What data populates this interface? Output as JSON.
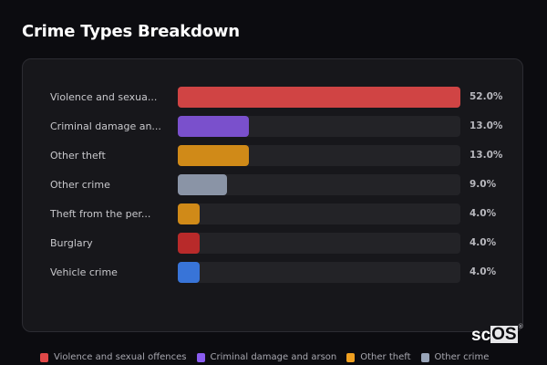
{
  "page": {
    "title": "Crime Types Breakdown",
    "brand": {
      "prefix": "sc",
      "boxed": "OS",
      "mark": "®"
    }
  },
  "chart_data": {
    "type": "bar",
    "orientation": "horizontal",
    "title": "Crime Types Breakdown",
    "xlabel": "",
    "ylabel": "",
    "xlim": [
      0,
      52
    ],
    "grid": false,
    "legend_position": "bottom",
    "categories": [
      "Violence and sexual offences",
      "Criminal damage and arson",
      "Other theft",
      "Other crime",
      "Theft from the person",
      "Burglary",
      "Vehicle crime"
    ],
    "display_labels": [
      "Violence and sexua...",
      "Criminal damage an...",
      "Other theft",
      "Other crime",
      "Theft from the per...",
      "Burglary",
      "Vehicle crime"
    ],
    "values": [
      52.0,
      13.0,
      13.0,
      9.0,
      4.0,
      4.0,
      4.0
    ],
    "value_labels": [
      "52.0%",
      "13.0%",
      "13.0%",
      "9.0%",
      "4.0%",
      "4.0%",
      "4.0%"
    ],
    "colors": [
      "#d04444",
      "#7a50cc",
      "#d08a18",
      "#8a94a6",
      "#d08a18",
      "#b82a2a",
      "#3874d8"
    ],
    "legend": [
      {
        "label": "Violence and sexual offences",
        "color": "#e04848"
      },
      {
        "label": "Criminal damage and arson",
        "color": "#8a5cf0"
      },
      {
        "label": "Other theft",
        "color": "#f0a020"
      },
      {
        "label": "Other crime",
        "color": "#98a4b8"
      }
    ]
  },
  "theme": {
    "background": "#0c0c10",
    "card": "#17171b",
    "track": "#232327"
  }
}
